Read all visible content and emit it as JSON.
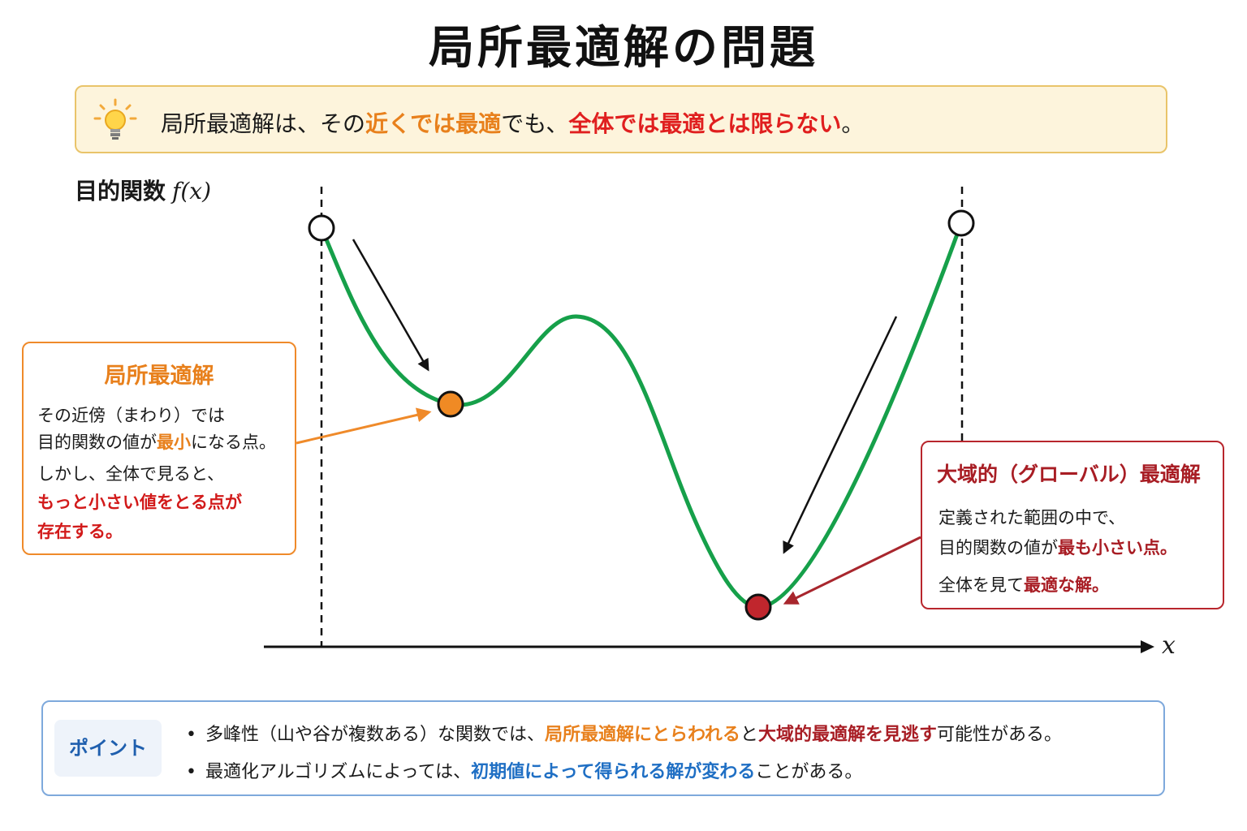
{
  "title": "局所最適解の問題",
  "tip": {
    "icon": "lightbulb-icon",
    "segments": [
      {
        "text": "局所最適解は、その",
        "style": "normal"
      },
      {
        "text": "近くでは最適",
        "style": "orange"
      },
      {
        "text": "でも、",
        "style": "normal"
      },
      {
        "text": "全体では最適とは限らない",
        "style": "red"
      },
      {
        "text": "。",
        "style": "normal"
      }
    ]
  },
  "axes": {
    "y_label": "目的関数",
    "y_math": "f(x)",
    "x_label": "x"
  },
  "local_box": {
    "title": "局所最適解",
    "lines": [
      [
        {
          "text": "その近傍（まわり）では",
          "style": "normal"
        }
      ],
      [
        {
          "text": "目的関数の値が",
          "style": "normal"
        },
        {
          "text": "最小",
          "style": "orange"
        },
        {
          "text": "になる点。",
          "style": "normal"
        }
      ],
      [
        {
          "text": "しかし、全体で見ると、",
          "style": "normal"
        }
      ],
      [
        {
          "text": "もっと小さい値をとる点が",
          "style": "red"
        }
      ],
      [
        {
          "text": "存在する。",
          "style": "red"
        }
      ]
    ]
  },
  "global_box": {
    "title": "大域的（グローバル）最適解",
    "lines": [
      [
        {
          "text": "定義された範囲の中で、",
          "style": "normal"
        }
      ],
      [
        {
          "text": "目的関数の値が",
          "style": "normal"
        },
        {
          "text": "最も小さい点。",
          "style": "darkred"
        }
      ],
      [
        {
          "text": "全体を見て",
          "style": "normal"
        },
        {
          "text": "最適な解。",
          "style": "darkred"
        }
      ]
    ]
  },
  "point_box": {
    "badge": "ポイント",
    "items": [
      [
        {
          "text": "多峰性（山や谷が複数ある）な関数では、",
          "style": "normal"
        },
        {
          "text": "局所最適解にとらわれる",
          "style": "orange"
        },
        {
          "text": "と",
          "style": "normal"
        },
        {
          "text": "大域的最適解を見逃す",
          "style": "darkred"
        },
        {
          "text": "可能性がある。",
          "style": "normal"
        }
      ],
      [
        {
          "text": "最適化アルゴリズムによっては、",
          "style": "normal"
        },
        {
          "text": "初期値によって得られる解が変わる",
          "style": "blue"
        },
        {
          "text": "ことがある。",
          "style": "normal"
        }
      ]
    ]
  },
  "colors": {
    "curve": "#16a04a",
    "local_min": "#f08a24",
    "global_min": "#c0262d",
    "local_arrow": "#ef8a2a",
    "global_arrow": "#a8262d",
    "start_point": "#ffffff"
  }
}
